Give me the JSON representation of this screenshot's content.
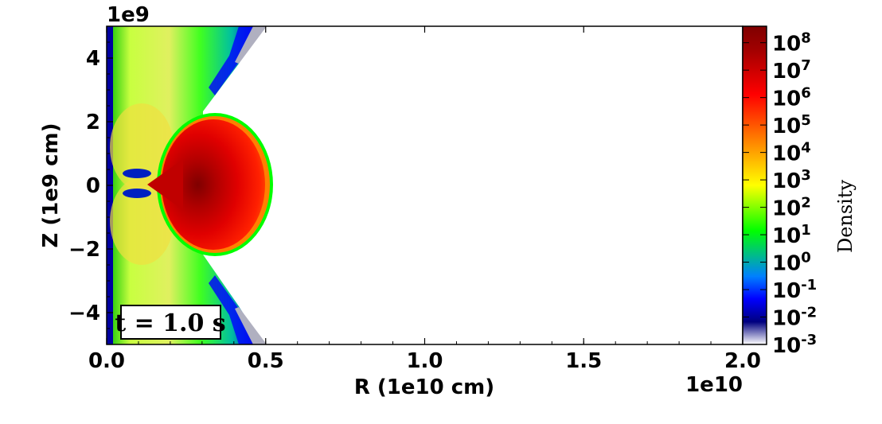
{
  "chart_data": {
    "type": "heatmap",
    "xlabel": "R (1e10 cm)",
    "ylabel": "Z (1e9 cm)",
    "x_offset_label": "1e10",
    "y_offset_label": "1e9",
    "xlim": [
      0.0,
      2.0
    ],
    "ylim": [
      -5,
      5
    ],
    "x_ticks": [
      {
        "value": 0.0,
        "label": "0.0"
      },
      {
        "value": 0.5,
        "label": "0.5"
      },
      {
        "value": 1.0,
        "label": "1.0"
      },
      {
        "value": 1.5,
        "label": "1.5"
      },
      {
        "value": 2.0,
        "label": "2.0"
      }
    ],
    "y_ticks": [
      {
        "value": 4,
        "label": "4"
      },
      {
        "value": 2,
        "label": "2"
      },
      {
        "value": 0,
        "label": "0"
      },
      {
        "value": -2,
        "label": "−2"
      },
      {
        "value": -4,
        "label": "−4"
      }
    ],
    "annotation": "t = 1.0 s",
    "colorbar": {
      "label": "Density",
      "scale": "log",
      "range_log10": [
        -3,
        8.6
      ],
      "ticks": [
        {
          "log10": 8,
          "base": "10",
          "exp": "8"
        },
        {
          "log10": 7,
          "base": "10",
          "exp": "7"
        },
        {
          "log10": 6,
          "base": "10",
          "exp": "6"
        },
        {
          "log10": 5,
          "base": "10",
          "exp": "5"
        },
        {
          "log10": 4,
          "base": "10",
          "exp": "4"
        },
        {
          "log10": 3,
          "base": "10",
          "exp": "3"
        },
        {
          "log10": 2,
          "base": "10",
          "exp": "2"
        },
        {
          "log10": 1,
          "base": "10",
          "exp": "1"
        },
        {
          "log10": 0,
          "base": "10",
          "exp": "0"
        },
        {
          "log10": -1,
          "base": "10",
          "exp": "-1"
        },
        {
          "log10": -2,
          "base": "10",
          "exp": "-2"
        },
        {
          "log10": -3,
          "base": "10",
          "exp": "-3"
        }
      ],
      "colormap": [
        "#ffffff",
        "#00007f",
        "#0000ff",
        "#0080ff",
        "#00c080",
        "#00ff00",
        "#80ff00",
        "#ffff00",
        "#ffc000",
        "#ff8000",
        "#ff4000",
        "#ff0000",
        "#d00000",
        "#a00000",
        "#7f0000"
      ]
    },
    "structures": [
      {
        "name": "central dense sphere",
        "center_R": 0.22,
        "center_Z": 0.0,
        "peak_log10_density": 8.0,
        "edge_log10_density": 3.5
      },
      {
        "name": "outflow lobes",
        "description": "green-yellow shell near axis, density ~10^0 to 10^2"
      },
      {
        "name": "vacuum region",
        "description": "white outside cone, density below 10^-3"
      }
    ]
  }
}
